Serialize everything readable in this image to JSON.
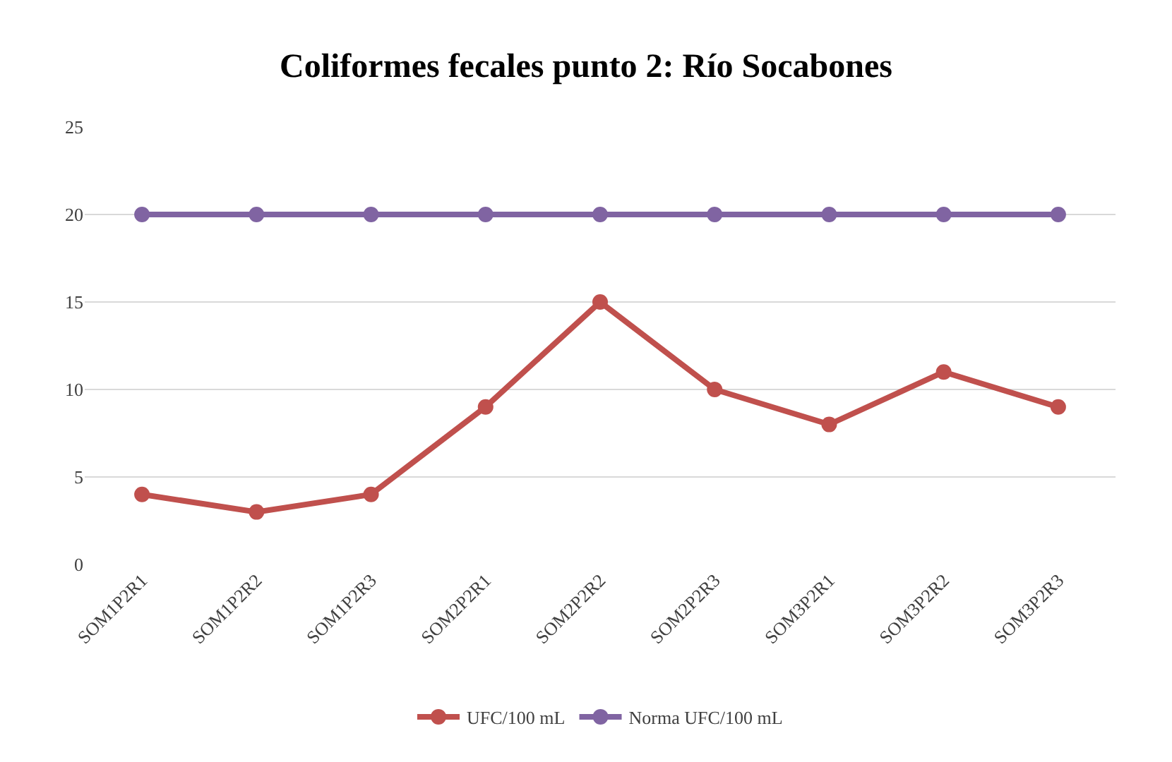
{
  "chart_data": {
    "type": "line",
    "title": "Coliformes fecales punto 2: Río Socabones",
    "categories": [
      "SOM1P2R1",
      "SOM1P2R2",
      "SOM1P2R3",
      "SOM2P2R1",
      "SOM2P2R2",
      "SOM2P2R3",
      "SOM3P2R1",
      "SOM3P2R2",
      "SOM3P2R3"
    ],
    "series": [
      {
        "name": "UFC/100 mL",
        "color": "#c0504d",
        "values": [
          4,
          3,
          4,
          9,
          15,
          10,
          8,
          11,
          9
        ]
      },
      {
        "name": "Norma UFC/100 mL",
        "color": "#8064a2",
        "values": [
          20,
          20,
          20,
          20,
          20,
          20,
          20,
          20,
          20
        ]
      }
    ],
    "ylim": [
      0,
      25
    ],
    "yticks": [
      0,
      5,
      10,
      15,
      20,
      25
    ],
    "grid": "y",
    "legend": "bottom",
    "marker": "circle",
    "line_style": "solid"
  }
}
